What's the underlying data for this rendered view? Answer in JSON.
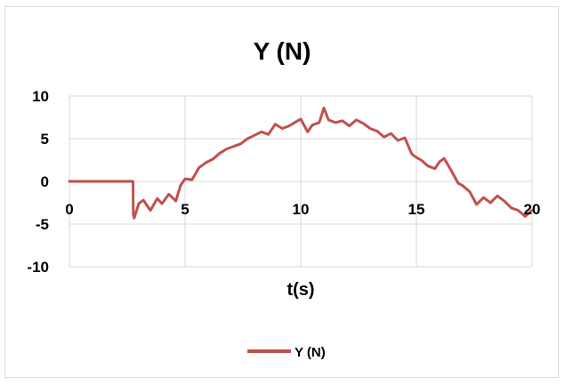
{
  "chart_data": {
    "type": "line",
    "title": "Y (N)",
    "xlabel": "t(s)",
    "ylabel": "",
    "xlim": [
      0,
      20
    ],
    "ylim": [
      -10,
      10
    ],
    "x_ticks": [
      0,
      5,
      10,
      15,
      20
    ],
    "y_ticks": [
      10,
      5,
      0,
      -5,
      -10
    ],
    "x_tick_labels": [
      "0",
      "5",
      "10",
      "15",
      "20"
    ],
    "y_tick_labels": [
      "10",
      "5",
      "0",
      "-5",
      "-10"
    ],
    "grid": true,
    "legend": "bottom",
    "series": [
      {
        "name": "Y (N)",
        "color": "#c0504d",
        "x": [
          0,
          2.75,
          2.76,
          2.8,
          3.0,
          3.2,
          3.5,
          3.8,
          4.0,
          4.3,
          4.6,
          4.8,
          5.0,
          5.3,
          5.6,
          5.9,
          6.2,
          6.5,
          6.8,
          7.1,
          7.4,
          7.7,
          8.0,
          8.3,
          8.6,
          8.9,
          9.2,
          9.5,
          9.8,
          10.0,
          10.3,
          10.5,
          10.8,
          11.0,
          11.2,
          11.5,
          11.8,
          12.1,
          12.4,
          12.7,
          13.0,
          13.3,
          13.6,
          13.9,
          14.2,
          14.5,
          14.8,
          15.0,
          15.2,
          15.5,
          15.8,
          16.0,
          16.2,
          16.5,
          16.8,
          17.0,
          17.3,
          17.6,
          17.9,
          18.2,
          18.5,
          18.8,
          19.1,
          19.4,
          19.7,
          20.0
        ],
        "y": [
          0,
          0,
          -3.8,
          -4.3,
          -2.6,
          -2.2,
          -3.4,
          -2.0,
          -2.6,
          -1.5,
          -2.3,
          -0.5,
          0.3,
          0.2,
          1.6,
          2.2,
          2.6,
          3.3,
          3.8,
          4.1,
          4.4,
          5.0,
          5.4,
          5.8,
          5.5,
          6.7,
          6.2,
          6.5,
          7.0,
          7.3,
          5.8,
          6.6,
          6.9,
          8.6,
          7.2,
          6.9,
          7.1,
          6.5,
          7.2,
          6.8,
          6.2,
          5.9,
          5.2,
          5.6,
          4.8,
          5.1,
          3.2,
          2.8,
          2.5,
          1.8,
          1.5,
          2.3,
          2.7,
          1.3,
          -0.2,
          -0.5,
          -1.2,
          -2.7,
          -1.9,
          -2.5,
          -1.7,
          -2.3,
          -3.1,
          -3.4,
          -4.1,
          -3.4
        ]
      }
    ]
  }
}
